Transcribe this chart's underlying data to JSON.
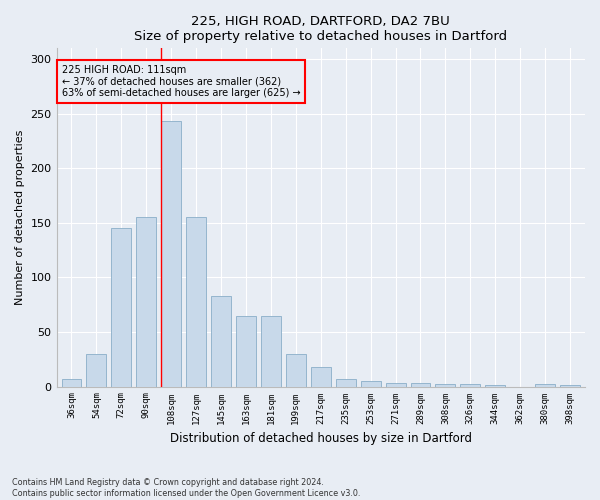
{
  "title1": "225, HIGH ROAD, DARTFORD, DA2 7BU",
  "title2": "Size of property relative to detached houses in Dartford",
  "xlabel": "Distribution of detached houses by size in Dartford",
  "ylabel": "Number of detached properties",
  "bar_color": "#c8d9ea",
  "bar_edge_color": "#8aaec8",
  "background_color": "#e8edf4",
  "grid_color": "#ffffff",
  "categories": [
    "36sqm",
    "54sqm",
    "72sqm",
    "90sqm",
    "108sqm",
    "127sqm",
    "145sqm",
    "163sqm",
    "181sqm",
    "199sqm",
    "217sqm",
    "235sqm",
    "253sqm",
    "271sqm",
    "289sqm",
    "308sqm",
    "326sqm",
    "344sqm",
    "362sqm",
    "380sqm",
    "398sqm"
  ],
  "values": [
    7,
    30,
    145,
    155,
    243,
    155,
    83,
    65,
    65,
    30,
    18,
    7,
    5,
    3,
    3,
    2,
    2,
    1,
    0,
    2,
    1
  ],
  "property_label": "225 HIGH ROAD: 111sqm",
  "annotation_line1": "← 37% of detached houses are smaller (362)",
  "annotation_line2": "63% of semi-detached houses are larger (625) →",
  "red_line_index": 4,
  "footer1": "Contains HM Land Registry data © Crown copyright and database right 2024.",
  "footer2": "Contains public sector information licensed under the Open Government Licence v3.0.",
  "ylim": [
    0,
    310
  ],
  "yticks": [
    0,
    50,
    100,
    150,
    200,
    250,
    300
  ],
  "figwidth": 6.0,
  "figheight": 5.0,
  "dpi": 100
}
